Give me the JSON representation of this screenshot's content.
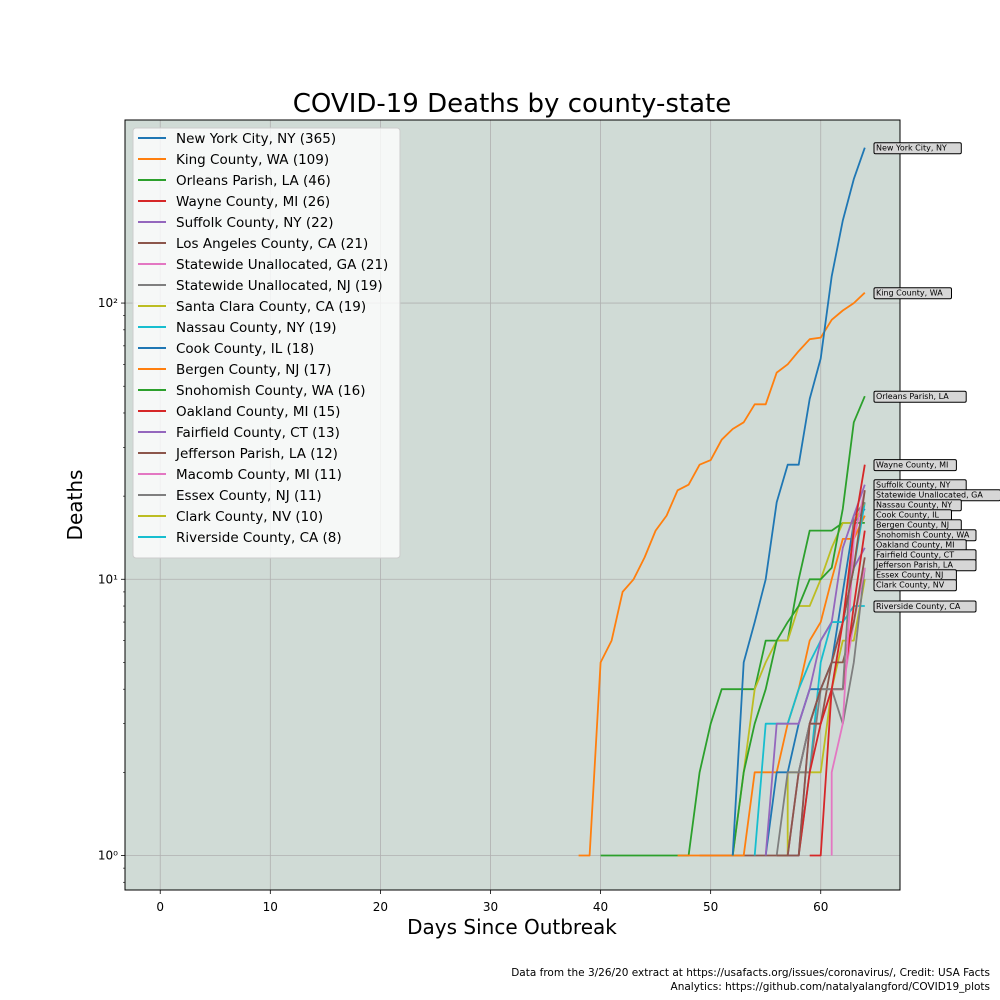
{
  "chart_data": {
    "type": "line",
    "title": "COVID-19 Deaths by county-state",
    "xlabel": "Days Since Outbreak",
    "ylabel": "Deaths",
    "yscale": "log",
    "xlim": [
      -3.2,
      67.2
    ],
    "ylim": [
      0.75,
      460
    ],
    "xticks": [
      0,
      10,
      20,
      30,
      40,
      50,
      60
    ],
    "xtick_labels": [
      "0",
      "10",
      "20",
      "30",
      "40",
      "50",
      "60"
    ],
    "yticks": [
      1,
      10,
      100
    ],
    "ytick_labels": [
      "10⁰",
      "10¹",
      "10²"
    ],
    "grid": true,
    "background": "#d0dbd6",
    "legend_position": "upper-left",
    "series": [
      {
        "name": "New York City, NY (365)",
        "end_label": "New York City, NY",
        "color": "#1f77b4",
        "points": [
          [
            52,
            1
          ],
          [
            53,
            5
          ],
          [
            54,
            7
          ],
          [
            55,
            10
          ],
          [
            56,
            19
          ],
          [
            57,
            26
          ],
          [
            58,
            26
          ],
          [
            59,
            45
          ],
          [
            60,
            63
          ],
          [
            61,
            125
          ],
          [
            62,
            199
          ],
          [
            63,
            281
          ],
          [
            64,
            365
          ]
        ]
      },
      {
        "name": "King County, WA (109)",
        "end_label": "King County, WA",
        "color": "#ff7f0e",
        "points": [
          [
            38,
            1
          ],
          [
            39,
            1
          ],
          [
            40,
            5
          ],
          [
            41,
            6
          ],
          [
            42,
            9
          ],
          [
            43,
            10
          ],
          [
            44,
            12
          ],
          [
            45,
            15
          ],
          [
            46,
            17
          ],
          [
            47,
            21
          ],
          [
            48,
            22
          ],
          [
            49,
            26
          ],
          [
            50,
            27
          ],
          [
            51,
            32
          ],
          [
            52,
            35
          ],
          [
            53,
            37
          ],
          [
            54,
            43
          ],
          [
            55,
            43
          ],
          [
            56,
            56
          ],
          [
            57,
            60
          ],
          [
            58,
            67
          ],
          [
            59,
            74
          ],
          [
            60,
            75
          ],
          [
            61,
            87
          ],
          [
            62,
            94
          ],
          [
            63,
            100
          ],
          [
            64,
            109
          ]
        ]
      },
      {
        "name": "Orleans Parish, LA (46)",
        "end_label": "Orleans Parish, LA",
        "color": "#2ca02c",
        "points": [
          [
            52,
            1
          ],
          [
            53,
            2
          ],
          [
            54,
            3
          ],
          [
            55,
            4
          ],
          [
            56,
            6
          ],
          [
            57,
            7
          ],
          [
            58,
            8
          ],
          [
            59,
            10
          ],
          [
            60,
            10
          ],
          [
            61,
            11
          ],
          [
            62,
            18
          ],
          [
            63,
            37
          ],
          [
            64,
            46
          ]
        ]
      },
      {
        "name": "Wayne County, MI (26)",
        "end_label": "Wayne County, MI",
        "color": "#d62728",
        "points": [
          [
            59,
            1
          ],
          [
            60,
            1
          ],
          [
            61,
            4
          ],
          [
            62,
            7
          ],
          [
            63,
            15
          ],
          [
            64,
            26
          ]
        ]
      },
      {
        "name": "Suffolk County, NY (22)",
        "end_label": "Suffolk County, NY",
        "color": "#9467bd",
        "points": [
          [
            55,
            1
          ],
          [
            56,
            3
          ],
          [
            57,
            3
          ],
          [
            58,
            3
          ],
          [
            59,
            4
          ],
          [
            60,
            6
          ],
          [
            61,
            7
          ],
          [
            62,
            13
          ],
          [
            63,
            17
          ],
          [
            64,
            22
          ]
        ]
      },
      {
        "name": "Los Angeles County, CA (21)",
        "end_label": "Los Angeles County, CA",
        "color": "#8c564b",
        "points": [
          [
            56,
            1
          ],
          [
            57,
            1
          ],
          [
            58,
            1
          ],
          [
            59,
            3
          ],
          [
            60,
            4
          ],
          [
            61,
            5
          ],
          [
            62,
            7
          ],
          [
            63,
            11
          ],
          [
            64,
            21
          ]
        ]
      },
      {
        "name": "Statewide Unallocated, GA (21)",
        "end_label": "Statewide Unallocated, GA",
        "color": "#e377c2",
        "points": [
          [
            61,
            1
          ],
          [
            61,
            2
          ],
          [
            62,
            3
          ],
          [
            63,
            14
          ],
          [
            64,
            21
          ]
        ]
      },
      {
        "name": "Statewide Unallocated, NJ (19)",
        "end_label": "Statewide Unallocated, NJ",
        "color": "#7f7f7f",
        "points": [
          [
            56,
            1
          ],
          [
            57,
            2
          ],
          [
            58,
            2
          ],
          [
            59,
            3
          ],
          [
            60,
            4
          ],
          [
            61,
            4
          ],
          [
            62,
            4
          ],
          [
            63,
            17
          ],
          [
            64,
            19
          ]
        ]
      },
      {
        "name": "Santa Clara County, CA (19)",
        "end_label": "Santa Clara County, CA",
        "color": "#bcbd22",
        "points": [
          [
            52,
            1
          ],
          [
            53,
            2
          ],
          [
            54,
            4
          ],
          [
            55,
            5
          ],
          [
            56,
            6
          ],
          [
            57,
            6
          ],
          [
            58,
            8
          ],
          [
            59,
            8
          ],
          [
            60,
            10
          ],
          [
            61,
            13
          ],
          [
            62,
            16
          ],
          [
            63,
            16
          ],
          [
            64,
            19
          ]
        ]
      },
      {
        "name": "Nassau County, NY (19)",
        "end_label": "Nassau County, NY",
        "color": "#17becf",
        "points": [
          [
            54,
            1
          ],
          [
            55,
            3
          ],
          [
            56,
            3
          ],
          [
            57,
            3
          ],
          [
            58,
            4
          ],
          [
            59,
            5
          ],
          [
            60,
            6
          ],
          [
            61,
            7
          ],
          [
            62,
            7
          ],
          [
            63,
            11
          ],
          [
            64,
            19
          ]
        ]
      },
      {
        "name": "Cook County, IL (18)",
        "end_label": "Cook County, IL",
        "color": "#1f77b4",
        "points": [
          [
            55,
            1
          ],
          [
            56,
            2
          ],
          [
            57,
            2
          ],
          [
            58,
            3
          ],
          [
            59,
            4
          ],
          [
            60,
            4
          ],
          [
            61,
            5
          ],
          [
            62,
            9
          ],
          [
            63,
            16
          ],
          [
            64,
            18
          ]
        ]
      },
      {
        "name": "Bergen County, NJ (17)",
        "end_label": "Bergen County, NJ",
        "color": "#ff7f0e",
        "points": [
          [
            47,
            1
          ],
          [
            48,
            1
          ],
          [
            49,
            1
          ],
          [
            50,
            1
          ],
          [
            51,
            1
          ],
          [
            52,
            1
          ],
          [
            53,
            1
          ],
          [
            54,
            2
          ],
          [
            55,
            2
          ],
          [
            56,
            2
          ],
          [
            57,
            3
          ],
          [
            58,
            4
          ],
          [
            59,
            6
          ],
          [
            60,
            7
          ],
          [
            61,
            10
          ],
          [
            62,
            14
          ],
          [
            63,
            14
          ],
          [
            64,
            17
          ]
        ]
      },
      {
        "name": "Snohomish County, WA (16)",
        "end_label": "Snohomish County, WA",
        "color": "#2ca02c",
        "points": [
          [
            40,
            1
          ],
          [
            41,
            1
          ],
          [
            42,
            1
          ],
          [
            43,
            1
          ],
          [
            44,
            1
          ],
          [
            45,
            1
          ],
          [
            46,
            1
          ],
          [
            47,
            1
          ],
          [
            48,
            1
          ],
          [
            49,
            2
          ],
          [
            50,
            3
          ],
          [
            51,
            4
          ],
          [
            52,
            4
          ],
          [
            53,
            4
          ],
          [
            54,
            4
          ],
          [
            55,
            6
          ],
          [
            56,
            6
          ],
          [
            57,
            6
          ],
          [
            58,
            10
          ],
          [
            59,
            15
          ],
          [
            60,
            15
          ],
          [
            61,
            15
          ],
          [
            62,
            16
          ],
          [
            63,
            16
          ],
          [
            64,
            16
          ]
        ]
      },
      {
        "name": "Oakland County, MI (15)",
        "end_label": "Oakland County, MI",
        "color": "#d62728",
        "points": [
          [
            58,
            1
          ],
          [
            59,
            2
          ],
          [
            60,
            3
          ],
          [
            61,
            4
          ],
          [
            62,
            4
          ],
          [
            63,
            8
          ],
          [
            64,
            15
          ]
        ]
      },
      {
        "name": "Fairfield County, CT (13)",
        "end_label": "Fairfield County, CT",
        "color": "#9467bd",
        "points": [
          [
            57,
            1
          ],
          [
            58,
            1
          ],
          [
            59,
            3
          ],
          [
            60,
            4
          ],
          [
            61,
            5
          ],
          [
            62,
            7
          ],
          [
            63,
            11
          ],
          [
            64,
            13
          ]
        ]
      },
      {
        "name": "Jefferson Parish, LA (12)",
        "end_label": "Jefferson Parish, LA",
        "color": "#8c564b",
        "points": [
          [
            49,
            1
          ],
          [
            50,
            1
          ],
          [
            51,
            1
          ],
          [
            52,
            1
          ],
          [
            53,
            1
          ],
          [
            54,
            1
          ],
          [
            55,
            1
          ],
          [
            56,
            1
          ],
          [
            57,
            1
          ],
          [
            58,
            2
          ],
          [
            59,
            3
          ],
          [
            60,
            3
          ],
          [
            61,
            5
          ],
          [
            62,
            5
          ],
          [
            63,
            7
          ],
          [
            64,
            12
          ]
        ]
      },
      {
        "name": "Macomb County, MI (11)",
        "end_label": "Macomb County, MI",
        "color": "#e377c2",
        "points": [
          [
            57,
            1
          ],
          [
            58,
            2
          ],
          [
            59,
            3
          ],
          [
            60,
            3
          ],
          [
            61,
            4
          ],
          [
            62,
            4
          ],
          [
            63,
            7
          ],
          [
            64,
            11
          ]
        ]
      },
      {
        "name": "Essex County, NJ (11)",
        "end_label": "Essex County, NJ",
        "color": "#7f7f7f",
        "points": [
          [
            57,
            1
          ],
          [
            58,
            2
          ],
          [
            59,
            2
          ],
          [
            60,
            4
          ],
          [
            61,
            4
          ],
          [
            62,
            3
          ],
          [
            63,
            5
          ],
          [
            64,
            11
          ]
        ]
      },
      {
        "name": "Clark County, NV (10)",
        "end_label": "Clark County, NV",
        "color": "#bcbd22",
        "points": [
          [
            57,
            1
          ],
          [
            57,
            2
          ],
          [
            58,
            2
          ],
          [
            59,
            2
          ],
          [
            60,
            2
          ],
          [
            61,
            4
          ],
          [
            62,
            6
          ],
          [
            63,
            6
          ],
          [
            64,
            10
          ]
        ]
      },
      {
        "name": "Riverside County, CA (8)",
        "end_label": "Riverside County, CA",
        "color": "#17becf",
        "points": [
          [
            58,
            1
          ],
          [
            59,
            2
          ],
          [
            60,
            5
          ],
          [
            61,
            7
          ],
          [
            62,
            7
          ],
          [
            63,
            8
          ],
          [
            64,
            8
          ]
        ]
      }
    ],
    "end_label_rows": [
      "New York City, NY",
      "King County, WA",
      "Orleans Parish, LA",
      "Wayne County, MI",
      "Suffolk County, NY",
      "Statewide Unallocated, GA",
      "Nassau County, NY",
      "Cook County, IL",
      "Bergen County, NJ",
      "Snohomish County, WA",
      "Oakland County, MI",
      "Fairfield County, CT",
      "Jefferson Parish, LA",
      "Essex County, NJ",
      "Clark County, NV",
      "Riverside County, CA"
    ]
  },
  "footer": {
    "line1": "Data from the 3/26/20 extract at https://usafacts.org/issues/coronavirus/, Credit: USA Facts",
    "line2": "Analytics: https://github.com/natalyalangford/COVID19_plots"
  }
}
